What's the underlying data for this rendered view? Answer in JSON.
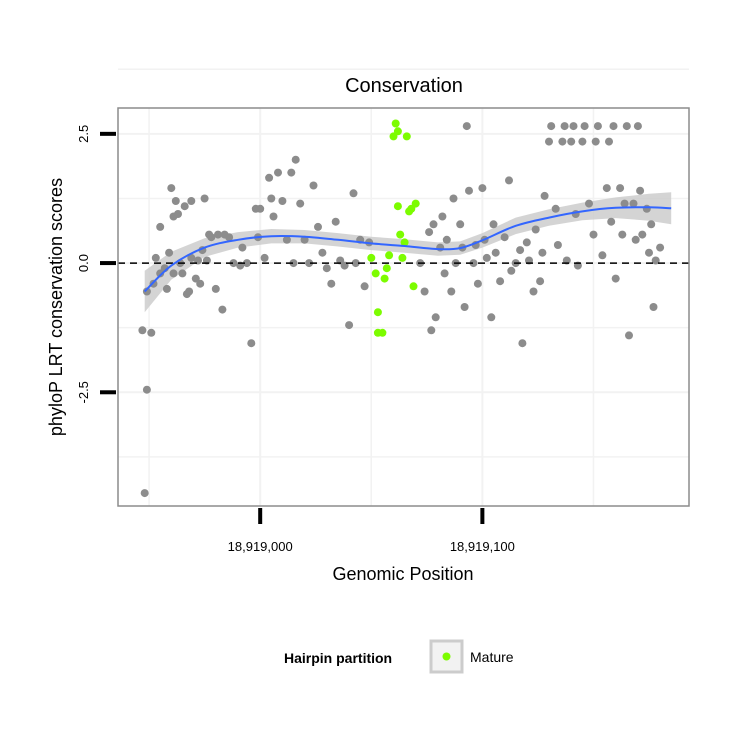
{
  "chart_data": {
    "type": "scatter",
    "title": "Conservation",
    "xlabel": "Genomic Position",
    "ylabel": "phyloP LRT conservation scores",
    "xlim": [
      18918936,
      18919193
    ],
    "ylim": [
      -4.7,
      3.0
    ],
    "x_ticks": [
      {
        "value": 18919000,
        "label": "18,919,000"
      },
      {
        "value": 18919100,
        "label": "18,919,100"
      }
    ],
    "y_ticks": [
      {
        "value": 2.5,
        "label": "2.5"
      },
      {
        "value": 0.0,
        "label": "0.0"
      },
      {
        "value": -2.5,
        "label": "-2.5"
      }
    ],
    "reference_line": {
      "y": 0,
      "style": "dashed"
    },
    "grid": true,
    "legend": {
      "position": "bottom",
      "title": "Hairpin partition",
      "entries": [
        {
          "label": "Mature",
          "color": "#7cfc00"
        }
      ]
    },
    "colors": {
      "points_other": "#8c8c8c",
      "points_mature": "#7cfc00",
      "smooth_line": "#3366ff",
      "confidence_band": "#cccccc",
      "panel_border": "#8c8c8c",
      "grid": "#f2f2f2"
    },
    "smooth": {
      "method": "loess",
      "x": [
        18918948,
        18918960,
        18918975,
        18918990,
        18919005,
        18919020,
        18919035,
        18919050,
        18919065,
        18919080,
        18919090,
        18919100,
        18919115,
        18919130,
        18919145,
        18919160,
        18919175,
        18919185
      ],
      "y": [
        -0.55,
        -0.05,
        0.3,
        0.45,
        0.52,
        0.51,
        0.45,
        0.38,
        0.33,
        0.27,
        0.29,
        0.44,
        0.72,
        0.88,
        1.0,
        1.07,
        1.08,
        1.06
      ],
      "ci_low": [
        -0.95,
        -0.32,
        0.12,
        0.3,
        0.38,
        0.38,
        0.32,
        0.25,
        0.2,
        0.14,
        0.16,
        0.3,
        0.56,
        0.72,
        0.83,
        0.87,
        0.82,
        0.75
      ],
      "ci_high": [
        -0.15,
        0.22,
        0.48,
        0.6,
        0.66,
        0.64,
        0.58,
        0.51,
        0.46,
        0.4,
        0.42,
        0.58,
        0.88,
        1.04,
        1.17,
        1.27,
        1.34,
        1.37
      ]
    },
    "series": [
      {
        "name": "Mature",
        "color": "#7cfc00",
        "points": [
          [
            18919050,
            0.1
          ],
          [
            18919052,
            -0.2
          ],
          [
            18919053,
            -0.95
          ],
          [
            18919053,
            -1.35
          ],
          [
            18919055,
            -1.35
          ],
          [
            18919056,
            -0.3
          ],
          [
            18919057,
            -0.1
          ],
          [
            18919058,
            0.15
          ],
          [
            18919060,
            2.45
          ],
          [
            18919061,
            2.7
          ],
          [
            18919062,
            2.55
          ],
          [
            18919062,
            1.1
          ],
          [
            18919063,
            0.55
          ],
          [
            18919064,
            0.1
          ],
          [
            18919065,
            0.4
          ],
          [
            18919066,
            2.45
          ],
          [
            18919067,
            1.0
          ],
          [
            18919068,
            1.05
          ],
          [
            18919069,
            -0.45
          ],
          [
            18919070,
            1.15
          ]
        ]
      },
      {
        "name": "",
        "color": "#8c8c8c",
        "points": [
          [
            18918948,
            -4.45
          ],
          [
            18918949,
            -2.45
          ],
          [
            18918947,
            -1.3
          ],
          [
            18918951,
            -1.35
          ],
          [
            18918949,
            -0.55
          ],
          [
            18918952,
            -0.4
          ],
          [
            18918953,
            0.1
          ],
          [
            18918955,
            0.7
          ],
          [
            18918955,
            -0.2
          ],
          [
            18918957,
            -0.1
          ],
          [
            18918958,
            -0.5
          ],
          [
            18918959,
            0.2
          ],
          [
            18918960,
            1.45
          ],
          [
            18918961,
            0.9
          ],
          [
            18918961,
            -0.2
          ],
          [
            18918962,
            1.2
          ],
          [
            18918963,
            0.95
          ],
          [
            18918964,
            0.0
          ],
          [
            18918965,
            -0.2
          ],
          [
            18918966,
            1.1
          ],
          [
            18918967,
            -0.6
          ],
          [
            18918968,
            -0.55
          ],
          [
            18918969,
            1.2
          ],
          [
            18918969,
            0.1
          ],
          [
            18918971,
            -0.3
          ],
          [
            18918972,
            0.05
          ],
          [
            18918973,
            -0.4
          ],
          [
            18918974,
            0.25
          ],
          [
            18918975,
            1.25
          ],
          [
            18918976,
            0.05
          ],
          [
            18918977,
            0.55
          ],
          [
            18918978,
            0.5
          ],
          [
            18918980,
            -0.5
          ],
          [
            18918981,
            0.55
          ],
          [
            18918983,
            -0.9
          ],
          [
            18918984,
            0.55
          ],
          [
            18918986,
            0.5
          ],
          [
            18918988,
            0.0
          ],
          [
            18918991,
            -0.05
          ],
          [
            18918992,
            0.3
          ],
          [
            18918994,
            0.0
          ],
          [
            18918996,
            -1.55
          ],
          [
            18918998,
            1.05
          ],
          [
            18918999,
            0.5
          ],
          [
            18919000,
            1.05
          ],
          [
            18919002,
            0.1
          ],
          [
            18919004,
            1.65
          ],
          [
            18919005,
            1.25
          ],
          [
            18919006,
            0.9
          ],
          [
            18919008,
            1.75
          ],
          [
            18919010,
            1.2
          ],
          [
            18919012,
            0.45
          ],
          [
            18919014,
            1.75
          ],
          [
            18919015,
            0.0
          ],
          [
            18919016,
            2.0
          ],
          [
            18919018,
            1.15
          ],
          [
            18919020,
            0.45
          ],
          [
            18919022,
            0.0
          ],
          [
            18919024,
            1.5
          ],
          [
            18919026,
            0.7
          ],
          [
            18919028,
            0.2
          ],
          [
            18919030,
            -0.1
          ],
          [
            18919032,
            -0.4
          ],
          [
            18919034,
            0.8
          ],
          [
            18919036,
            0.05
          ],
          [
            18919038,
            -0.05
          ],
          [
            18919040,
            -1.2
          ],
          [
            18919042,
            1.35
          ],
          [
            18919043,
            0.0
          ],
          [
            18919045,
            0.45
          ],
          [
            18919047,
            -0.45
          ],
          [
            18919049,
            0.4
          ],
          [
            18919072,
            0.0
          ],
          [
            18919074,
            -0.55
          ],
          [
            18919076,
            0.6
          ],
          [
            18919077,
            -1.3
          ],
          [
            18919078,
            0.75
          ],
          [
            18919079,
            -1.05
          ],
          [
            18919081,
            0.3
          ],
          [
            18919082,
            0.9
          ],
          [
            18919083,
            -0.2
          ],
          [
            18919084,
            0.45
          ],
          [
            18919086,
            -0.55
          ],
          [
            18919087,
            1.25
          ],
          [
            18919088,
            0.0
          ],
          [
            18919090,
            0.75
          ],
          [
            18919091,
            0.3
          ],
          [
            18919092,
            -0.85
          ],
          [
            18919093,
            2.65
          ],
          [
            18919094,
            1.4
          ],
          [
            18919096,
            0.0
          ],
          [
            18919097,
            0.35
          ],
          [
            18919098,
            -0.4
          ],
          [
            18919100,
            1.45
          ],
          [
            18919101,
            0.45
          ],
          [
            18919102,
            0.1
          ],
          [
            18919104,
            -1.05
          ],
          [
            18919105,
            0.75
          ],
          [
            18919106,
            0.2
          ],
          [
            18919108,
            -0.35
          ],
          [
            18919110,
            0.5
          ],
          [
            18919112,
            1.6
          ],
          [
            18919113,
            -0.15
          ],
          [
            18919115,
            0.0
          ],
          [
            18919117,
            0.25
          ],
          [
            18919118,
            -1.55
          ],
          [
            18919120,
            0.4
          ],
          [
            18919121,
            0.05
          ],
          [
            18919123,
            -0.55
          ],
          [
            18919124,
            0.65
          ],
          [
            18919126,
            -0.35
          ],
          [
            18919127,
            0.2
          ],
          [
            18919128,
            1.3
          ],
          [
            18919130,
            2.35
          ],
          [
            18919131,
            2.65
          ],
          [
            18919133,
            1.05
          ],
          [
            18919134,
            0.35
          ],
          [
            18919136,
            2.35
          ],
          [
            18919137,
            2.65
          ],
          [
            18919138,
            0.05
          ],
          [
            18919140,
            2.35
          ],
          [
            18919141,
            2.65
          ],
          [
            18919142,
            0.95
          ],
          [
            18919143,
            -0.05
          ],
          [
            18919145,
            2.35
          ],
          [
            18919146,
            2.65
          ],
          [
            18919148,
            1.15
          ],
          [
            18919150,
            0.55
          ],
          [
            18919151,
            2.35
          ],
          [
            18919152,
            2.65
          ],
          [
            18919154,
            0.15
          ],
          [
            18919156,
            1.45
          ],
          [
            18919157,
            2.35
          ],
          [
            18919158,
            0.8
          ],
          [
            18919159,
            2.65
          ],
          [
            18919160,
            -0.3
          ],
          [
            18919162,
            1.45
          ],
          [
            18919163,
            0.55
          ],
          [
            18919164,
            1.15
          ],
          [
            18919165,
            2.65
          ],
          [
            18919166,
            -1.4
          ],
          [
            18919168,
            1.15
          ],
          [
            18919169,
            0.45
          ],
          [
            18919170,
            2.65
          ],
          [
            18919171,
            1.4
          ],
          [
            18919172,
            0.55
          ],
          [
            18919174,
            1.05
          ],
          [
            18919175,
            0.2
          ],
          [
            18919176,
            0.75
          ],
          [
            18919177,
            -0.85
          ],
          [
            18919178,
            0.05
          ],
          [
            18919180,
            0.3
          ]
        ]
      }
    ]
  }
}
